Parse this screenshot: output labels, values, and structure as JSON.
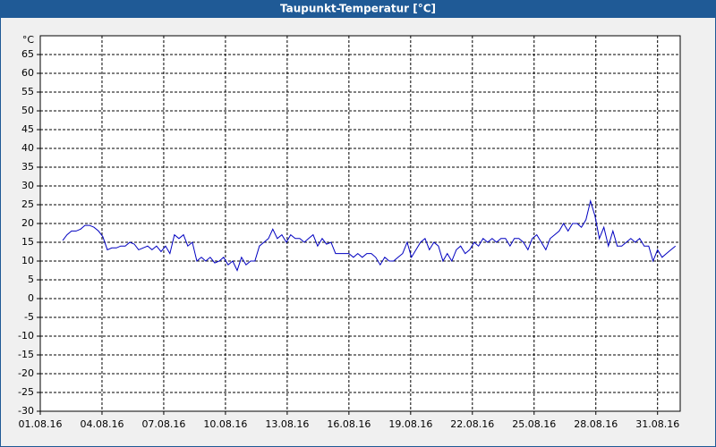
{
  "chart_data": {
    "type": "line",
    "title": "Taupunkt-Temperatur [°C]",
    "y_label": "°C",
    "xlim": [
      0,
      31.1
    ],
    "xticks": [
      {
        "value": 0,
        "label": "01.08.16"
      },
      {
        "value": 3,
        "label": "04.08.16"
      },
      {
        "value": 6,
        "label": "07.08.16"
      },
      {
        "value": 9,
        "label": "10.08.16"
      },
      {
        "value": 12,
        "label": "13.08.16"
      },
      {
        "value": 15,
        "label": "16.08.16"
      },
      {
        "value": 18,
        "label": "19.08.16"
      },
      {
        "value": 21,
        "label": "22.08.16"
      },
      {
        "value": 24,
        "label": "25.08.16"
      },
      {
        "value": 27,
        "label": "28.08.16"
      },
      {
        "value": 30,
        "label": "31.08.16"
      }
    ],
    "ylim": [
      -30,
      70
    ],
    "yticks": [
      -30,
      -25,
      -20,
      -15,
      -10,
      -5,
      0,
      5,
      10,
      15,
      20,
      25,
      30,
      35,
      40,
      45,
      50,
      55,
      60,
      65
    ],
    "grid": true,
    "series": [
      {
        "color": "#0000c0",
        "x": [
          1.09,
          1.3,
          1.52,
          1.74,
          1.96,
          2.17,
          2.39,
          2.61,
          2.83,
          3.04,
          3.26,
          3.48,
          3.7,
          3.91,
          4.13,
          4.35,
          4.57,
          4.78,
          5.0,
          5.22,
          5.43,
          5.65,
          5.87,
          6.09,
          6.3,
          6.52,
          6.74,
          6.96,
          7.17,
          7.39,
          7.61,
          7.83,
          8.04,
          8.26,
          8.48,
          8.7,
          8.91,
          9.13,
          9.35,
          9.57,
          9.78,
          10.0,
          10.22,
          10.43,
          10.65,
          10.87,
          11.09,
          11.3,
          11.52,
          11.74,
          11.96,
          12.17,
          12.39,
          12.61,
          12.83,
          13.04,
          13.26,
          13.48,
          13.7,
          13.91,
          14.13,
          14.35,
          14.57,
          14.78,
          15.0,
          15.22,
          15.43,
          15.65,
          15.87,
          16.09,
          16.3,
          16.52,
          16.74,
          16.96,
          17.17,
          17.39,
          17.61,
          17.83,
          18.04,
          18.26,
          18.48,
          18.7,
          18.91,
          19.13,
          19.35,
          19.57,
          19.78,
          20.0,
          20.22,
          20.43,
          20.65,
          20.87,
          21.09,
          21.3,
          21.52,
          21.74,
          21.96,
          22.17,
          22.39,
          22.61,
          22.83,
          23.04,
          23.26,
          23.48,
          23.7,
          23.91,
          24.13,
          24.35,
          24.57,
          24.78,
          25.0,
          25.22,
          25.43,
          25.65,
          25.87,
          26.09,
          26.3,
          26.52,
          26.74,
          26.96,
          27.17,
          27.39,
          27.61,
          27.83,
          28.04,
          28.26,
          28.48,
          28.7,
          28.91,
          29.13,
          29.35,
          29.57,
          29.78,
          30.0,
          30.22,
          30.43,
          30.65,
          30.87
        ],
        "values": [
          15.5,
          17,
          18,
          18,
          18.5,
          19.5,
          19.5,
          19,
          18,
          16.5,
          13,
          13.5,
          13.5,
          14,
          14,
          15,
          14.5,
          13,
          13.5,
          14,
          13,
          14,
          12.5,
          14,
          12,
          17,
          16,
          17,
          14,
          15,
          10,
          11,
          10,
          11,
          9.5,
          10,
          11,
          9,
          10,
          7.5,
          11,
          9,
          10,
          10,
          14,
          15,
          16,
          18.5,
          16,
          17,
          15,
          17,
          16,
          16,
          15,
          16,
          17,
          14,
          16,
          14.5,
          15,
          12,
          12,
          12,
          12,
          11,
          12,
          11,
          12,
          12,
          11,
          9,
          11,
          10,
          10,
          11,
          12,
          15,
          11,
          13,
          15,
          16,
          13,
          15,
          14,
          10,
          12,
          10,
          13,
          14,
          12,
          13,
          15,
          14,
          16,
          15,
          16,
          15,
          16,
          16,
          14,
          16,
          16,
          15,
          13,
          16,
          17,
          15,
          13,
          16,
          17,
          18,
          20,
          18,
          20,
          20,
          19,
          21,
          26,
          22,
          16,
          19,
          14,
          18,
          14,
          14,
          15,
          16,
          15,
          16,
          14,
          14,
          10,
          13,
          11,
          12,
          13,
          14
        ]
      }
    ]
  }
}
